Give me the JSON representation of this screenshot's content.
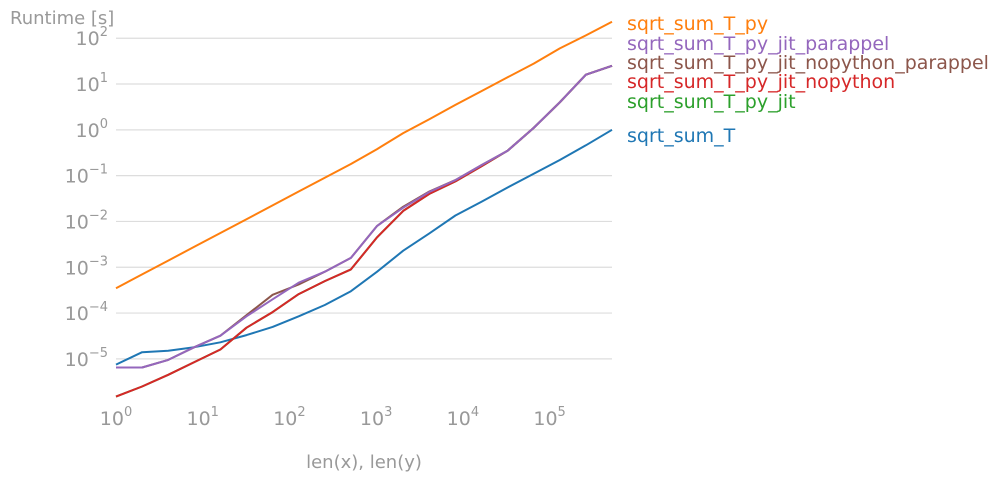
{
  "chart_data": {
    "type": "line",
    "xlabel": "len(x), len(y)",
    "ylabel": "Runtime [s]",
    "xscale": "log",
    "yscale": "log",
    "xlim": [
      1,
      524288
    ],
    "ylim": [
      1.4e-06,
      250
    ],
    "grid": "horizontal",
    "legend": "right, labels at line ends",
    "xticks": [
      {
        "base": "10",
        "exp": "0",
        "value": 1
      },
      {
        "base": "10",
        "exp": "1",
        "value": 10
      },
      {
        "base": "10",
        "exp": "2",
        "value": 100
      },
      {
        "base": "10",
        "exp": "3",
        "value": 1000
      },
      {
        "base": "10",
        "exp": "4",
        "value": 10000
      },
      {
        "base": "10",
        "exp": "5",
        "value": 100000
      }
    ],
    "yticks": [
      {
        "base": "10",
        "exp": "−5",
        "value": 1e-05
      },
      {
        "base": "10",
        "exp": "−4",
        "value": 0.0001
      },
      {
        "base": "10",
        "exp": "−3",
        "value": 0.001
      },
      {
        "base": "10",
        "exp": "−2",
        "value": 0.01
      },
      {
        "base": "10",
        "exp": "−1",
        "value": 0.1
      },
      {
        "base": "10",
        "exp": "0",
        "value": 1
      },
      {
        "base": "10",
        "exp": "1",
        "value": 10
      },
      {
        "base": "10",
        "exp": "2",
        "value": 100
      }
    ],
    "x": [
      1,
      2,
      4,
      8,
      16,
      32,
      64,
      128,
      256,
      512,
      1024,
      2048,
      4096,
      8192,
      16384,
      32768,
      65536,
      131072,
      262144,
      524288
    ],
    "series": [
      {
        "name": "sqrt_sum_T_py",
        "color": "#ff7f0e",
        "values": [
          0.00035,
          0.0007,
          0.0014,
          0.0028,
          0.0056,
          0.0112,
          0.0224,
          0.045,
          0.09,
          0.18,
          0.38,
          0.85,
          1.7,
          3.5,
          7,
          14,
          28,
          60,
          115,
          230
        ]
      },
      {
        "name": "sqrt_sum_T_py_jit_parappel",
        "color": "#9467bd",
        "values": [
          6.5e-06,
          6.5e-06,
          9.5e-06,
          1.8e-05,
          3.2e-05,
          8.5e-05,
          0.0002,
          0.00046,
          0.0008,
          0.0016,
          0.008,
          0.02,
          0.044,
          0.08,
          0.17,
          0.35,
          1.1,
          4,
          16,
          25
        ]
      },
      {
        "name": "sqrt_sum_T_py_jit_nopython_parappel",
        "color": "#8c564b",
        "values": [
          6.5e-06,
          6.5e-06,
          9.5e-06,
          1.8e-05,
          3.2e-05,
          9e-05,
          0.00025,
          0.00042,
          0.0008,
          0.0016,
          0.008,
          0.021,
          0.045,
          0.08,
          0.17,
          0.35,
          1.1,
          4,
          16,
          25
        ]
      },
      {
        "name": "sqrt_sum_T_py_jit_nopython",
        "color": "#d62728",
        "values": [
          1.5e-06,
          2.5e-06,
          4.5e-06,
          8.5e-06,
          1.6e-05,
          4.8e-05,
          0.000105,
          0.00026,
          0.0005,
          0.0009,
          0.0045,
          0.017,
          0.04,
          0.075,
          0.16,
          0.35,
          1.1,
          4,
          16,
          25
        ]
      },
      {
        "name": "sqrt_sum_T_py_jit",
        "color": "#2ca02c",
        "values": [
          1.5e-06,
          2.5e-06,
          4.5e-06,
          8.5e-06,
          1.6e-05,
          4.8e-05,
          0.000105,
          0.00026,
          0.0005,
          0.0009,
          0.0045,
          0.017,
          0.04,
          0.075,
          0.16,
          0.35,
          1.1,
          4,
          16,
          25
        ]
      },
      {
        "name": "sqrt_sum_T",
        "color": "#1f77b4",
        "values": [
          7.5e-06,
          1.4e-05,
          1.5e-05,
          1.8e-05,
          2.3e-05,
          3.3e-05,
          5e-05,
          8.5e-05,
          0.00015,
          0.0003,
          0.0008,
          0.0023,
          0.0055,
          0.0135,
          0.027,
          0.055,
          0.11,
          0.22,
          0.46,
          1
        ]
      }
    ]
  }
}
